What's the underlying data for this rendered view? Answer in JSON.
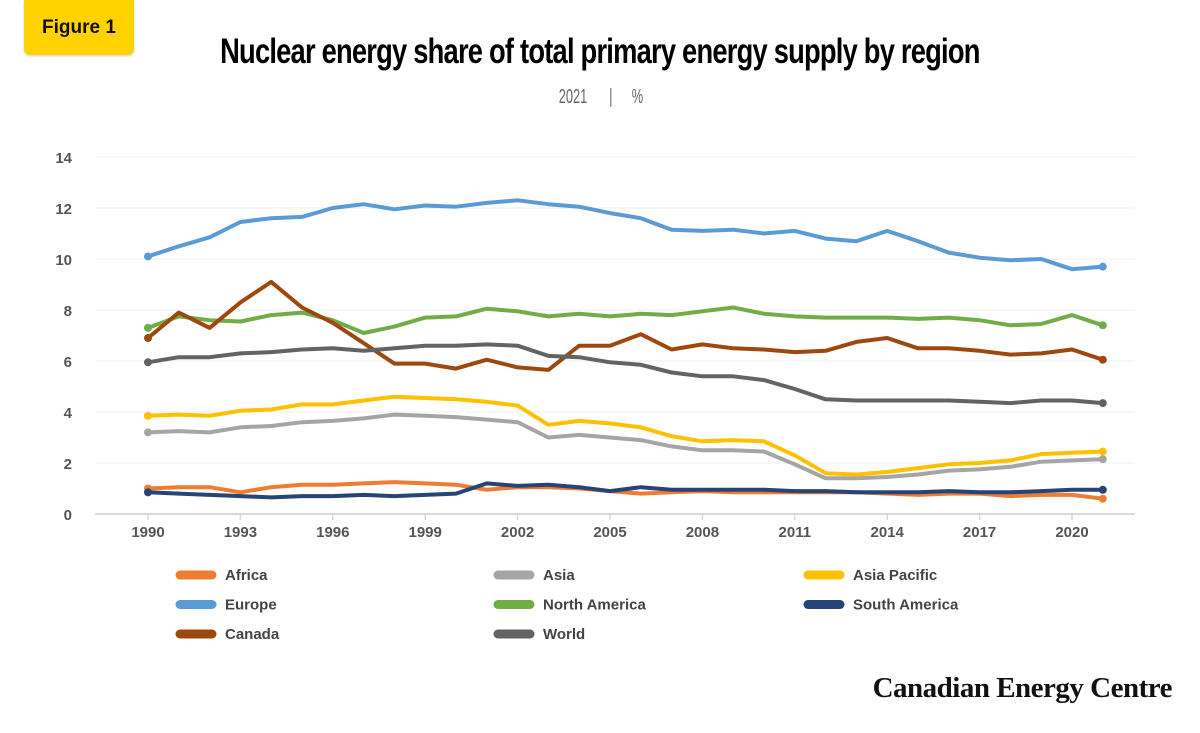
{
  "badge": "Figure 1",
  "chart_data": {
    "type": "line",
    "title": "Nuclear energy share of total primary energy supply by region",
    "subtitle_year": "2021",
    "subtitle_unit": "%",
    "xlabel": "",
    "ylabel": "",
    "ylim": [
      0,
      14
    ],
    "yticks": [
      0,
      2,
      4,
      6,
      8,
      10,
      12,
      14
    ],
    "xticks": [
      1990,
      1993,
      1996,
      1999,
      2002,
      2005,
      2008,
      2011,
      2014,
      2017,
      2020
    ],
    "grid": true,
    "legend_position": "bottom",
    "x": [
      1990,
      1991,
      1992,
      1993,
      1994,
      1995,
      1996,
      1997,
      1998,
      1999,
      2000,
      2001,
      2002,
      2003,
      2004,
      2005,
      2006,
      2007,
      2008,
      2009,
      2010,
      2011,
      2012,
      2013,
      2014,
      2015,
      2016,
      2017,
      2018,
      2019,
      2020,
      2021
    ],
    "series": [
      {
        "name": "Africa",
        "color": "#ee7d31",
        "values": [
          1.0,
          1.05,
          1.05,
          0.85,
          1.05,
          1.15,
          1.15,
          1.2,
          1.25,
          1.2,
          1.15,
          0.95,
          1.05,
          1.05,
          1.0,
          0.9,
          0.8,
          0.85,
          0.9,
          0.85,
          0.85,
          0.85,
          0.85,
          0.85,
          0.8,
          0.75,
          0.8,
          0.8,
          0.7,
          0.75,
          0.75,
          0.6
        ]
      },
      {
        "name": "Asia",
        "color": "#a5a5a5",
        "values": [
          3.2,
          3.25,
          3.2,
          3.4,
          3.45,
          3.6,
          3.65,
          3.75,
          3.9,
          3.85,
          3.8,
          3.7,
          3.6,
          3.0,
          3.1,
          3.0,
          2.9,
          2.65,
          2.5,
          2.5,
          2.45,
          1.95,
          1.4,
          1.4,
          1.45,
          1.55,
          1.7,
          1.75,
          1.85,
          2.05,
          2.1,
          2.15
        ]
      },
      {
        "name": "Asia Pacific",
        "color": "#ffc000",
        "values": [
          3.85,
          3.9,
          3.85,
          4.05,
          4.1,
          4.3,
          4.3,
          4.45,
          4.6,
          4.55,
          4.5,
          4.4,
          4.25,
          3.5,
          3.65,
          3.55,
          3.4,
          3.05,
          2.85,
          2.9,
          2.85,
          2.3,
          1.6,
          1.55,
          1.65,
          1.8,
          1.95,
          2.0,
          2.1,
          2.35,
          2.4,
          2.45
        ]
      },
      {
        "name": "Europe",
        "color": "#5b9bd5",
        "values": [
          10.1,
          10.5,
          10.85,
          11.45,
          11.6,
          11.65,
          12.0,
          12.15,
          11.95,
          12.1,
          12.05,
          12.2,
          12.3,
          12.15,
          12.05,
          11.8,
          11.6,
          11.15,
          11.1,
          11.15,
          11.0,
          11.1,
          10.8,
          10.7,
          11.1,
          10.7,
          10.25,
          10.05,
          9.95,
          10.0,
          9.6,
          9.7
        ]
      },
      {
        "name": "North America",
        "color": "#70ad47",
        "values": [
          7.3,
          7.75,
          7.6,
          7.55,
          7.8,
          7.9,
          7.6,
          7.1,
          7.35,
          7.7,
          7.75,
          8.05,
          7.95,
          7.75,
          7.85,
          7.75,
          7.85,
          7.8,
          7.95,
          8.1,
          7.85,
          7.75,
          7.7,
          7.7,
          7.7,
          7.65,
          7.7,
          7.6,
          7.4,
          7.45,
          7.8,
          7.4
        ]
      },
      {
        "name": "South America",
        "color": "#264478",
        "values": [
          0.85,
          0.8,
          0.75,
          0.7,
          0.65,
          0.7,
          0.7,
          0.75,
          0.7,
          0.75,
          0.8,
          1.2,
          1.1,
          1.15,
          1.05,
          0.9,
          1.05,
          0.95,
          0.95,
          0.95,
          0.95,
          0.9,
          0.9,
          0.85,
          0.85,
          0.85,
          0.9,
          0.85,
          0.85,
          0.9,
          0.95,
          0.95
        ]
      },
      {
        "name": "Canada",
        "color": "#9e480e",
        "values": [
          6.9,
          7.9,
          7.3,
          8.3,
          9.1,
          8.1,
          7.5,
          6.7,
          5.9,
          5.9,
          5.7,
          6.05,
          5.75,
          5.65,
          6.6,
          6.6,
          7.05,
          6.45,
          6.65,
          6.5,
          6.45,
          6.35,
          6.4,
          6.75,
          6.9,
          6.5,
          6.5,
          6.4,
          6.25,
          6.3,
          6.45,
          6.05
        ]
      },
      {
        "name": "World",
        "color": "#636363",
        "values": [
          5.95,
          6.15,
          6.15,
          6.3,
          6.35,
          6.45,
          6.5,
          6.4,
          6.5,
          6.6,
          6.6,
          6.65,
          6.6,
          6.2,
          6.15,
          5.95,
          5.85,
          5.55,
          5.4,
          5.4,
          5.25,
          4.9,
          4.5,
          4.45,
          4.45,
          4.45,
          4.45,
          4.4,
          4.35,
          4.45,
          4.45,
          4.35
        ]
      }
    ]
  },
  "logo": "Canadian Energy Centre"
}
